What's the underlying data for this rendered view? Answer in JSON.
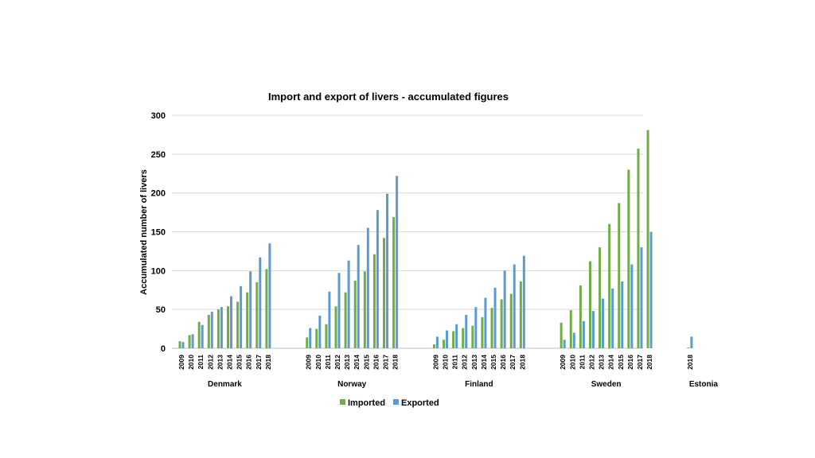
{
  "chart_data": {
    "type": "bar",
    "title": "Import and export of livers - accumulated figures",
    "ylabel": "Accumulated number of livers",
    "xlabel": "",
    "ylim": [
      0,
      300
    ],
    "yticks": [
      0,
      50,
      100,
      150,
      200,
      250,
      300
    ],
    "grid": true,
    "legend_position": "bottom",
    "colors": {
      "Imported": "#70AD47",
      "Exported": "#5B9BD5",
      "grid": "#d9d9d9"
    },
    "series": [
      {
        "name": "Imported"
      },
      {
        "name": "Exported"
      }
    ],
    "groups": [
      {
        "name": "Denmark",
        "years": [
          "2009",
          "2010",
          "2011",
          "2012",
          "2013",
          "2014",
          "2015",
          "2016",
          "2017",
          "2018"
        ],
        "imported": [
          9,
          17,
          34,
          43,
          50,
          54,
          60,
          72,
          85,
          102
        ],
        "exported": [
          8,
          18,
          30,
          47,
          53,
          67,
          80,
          99,
          117,
          135
        ]
      },
      {
        "name": "Norway",
        "years": [
          "2009",
          "2010",
          "2011",
          "2012",
          "2013",
          "2014",
          "2015",
          "2016",
          "2017",
          "2018"
        ],
        "imported": [
          14,
          25,
          31,
          54,
          72,
          87,
          99,
          121,
          142,
          169
        ],
        "exported": [
          26,
          42,
          73,
          97,
          113,
          133,
          155,
          178,
          199,
          222
        ]
      },
      {
        "name": "Finland",
        "years": [
          "2009",
          "2010",
          "2011",
          "2012",
          "2013",
          "2014",
          "2015",
          "2016",
          "2017",
          "2018"
        ],
        "imported": [
          5,
          11,
          22,
          26,
          29,
          40,
          52,
          63,
          70,
          86
        ],
        "exported": [
          15,
          23,
          31,
          43,
          53,
          65,
          78,
          100,
          108,
          119
        ]
      },
      {
        "name": "Sweden",
        "years": [
          "2009",
          "2010",
          "2011",
          "2012",
          "2013",
          "2014",
          "2015",
          "2016",
          "2017",
          "2018"
        ],
        "imported": [
          33,
          49,
          81,
          112,
          130,
          160,
          187,
          230,
          257,
          281
        ],
        "exported": [
          11,
          20,
          35,
          48,
          64,
          77,
          86,
          108,
          130,
          150
        ]
      },
      {
        "name": "Estonia",
        "years": [
          "2018"
        ],
        "imported": [
          1
        ],
        "exported": [
          15
        ]
      }
    ]
  }
}
